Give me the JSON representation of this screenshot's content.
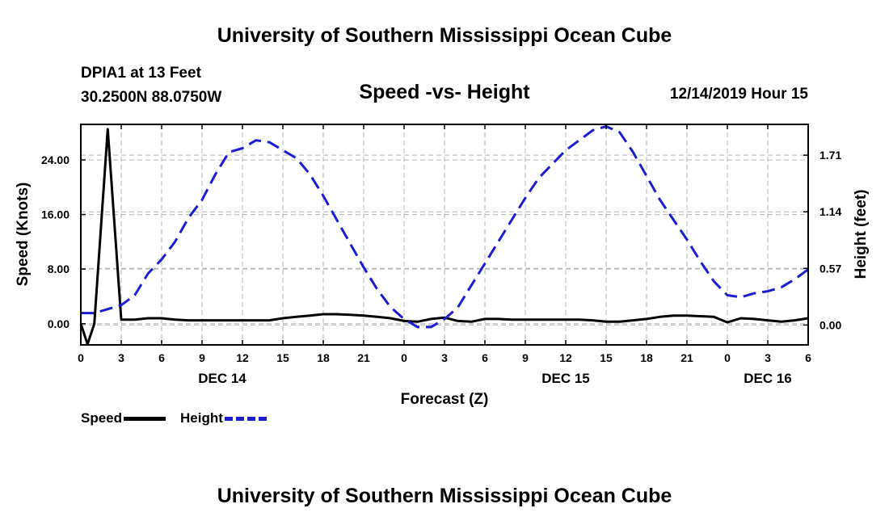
{
  "header": {
    "title": "University of Southern Mississippi Ocean Cube",
    "station_line1": "DPIA1 at 13 Feet",
    "station_line2": "30.2500N 88.0750W",
    "chart_subtitle": "Speed -vs- Height",
    "datetime": "12/14/2019 Hour 15"
  },
  "footer": {
    "title": "University of Southern Mississippi Ocean Cube"
  },
  "legend": {
    "speed_label": "Speed",
    "height_label": "Height"
  },
  "colors": {
    "speed": "#000000",
    "height": "#1c1cd0",
    "grid": "#b4b4b4"
  },
  "chart_data": {
    "type": "line",
    "title": "Speed -vs- Height",
    "xlabel": "Forecast (Z)",
    "ylabel_left": "Speed (Knots)",
    "ylabel_right": "Height (feet)",
    "x_unit": "forecast hours from 12/14/2019 00Z",
    "xlim": [
      0,
      54
    ],
    "x_ticks": [
      0,
      3,
      6,
      9,
      12,
      15,
      18,
      21,
      24,
      27,
      30,
      33,
      36,
      39,
      42,
      45,
      48,
      51,
      54
    ],
    "x_tick_labels": [
      "0",
      "3",
      "6",
      "9",
      "12",
      "15",
      "18",
      "21",
      "0",
      "3",
      "6",
      "9",
      "12",
      "15",
      "18",
      "21",
      "0",
      "3",
      "6"
    ],
    "day_labels": [
      {
        "label": "DEC 14",
        "x": 10.5
      },
      {
        "label": "DEC 15",
        "x": 36
      },
      {
        "label": "DEC 16",
        "x": 51
      }
    ],
    "ylim_left": [
      -3.1,
      29.2
    ],
    "y_ticks_left": [
      0,
      8,
      16,
      24
    ],
    "y_tick_labels_left": [
      "0.00",
      "8.00",
      "16.00",
      "24.00"
    ],
    "ylim_right": [
      -0.2,
      2.02
    ],
    "y_ticks_right": [
      0,
      0.57,
      1.14,
      1.71
    ],
    "y_tick_labels_right": [
      "0.00",
      "0.57",
      "1.14",
      "1.71"
    ],
    "grid": true,
    "series": [
      {
        "name": "Speed",
        "axis": "left",
        "style": "solid",
        "x": [
          0,
          0.5,
          1,
          2,
          3,
          4,
          5,
          6,
          7,
          8,
          9,
          10,
          11,
          12,
          13,
          14,
          15,
          16,
          17,
          18,
          19,
          20,
          21,
          22,
          23,
          24,
          25,
          26,
          27,
          28,
          29,
          30,
          31,
          32,
          33,
          34,
          35,
          36,
          37,
          38,
          39,
          40,
          41,
          42,
          43,
          44,
          45,
          46,
          47,
          48,
          49,
          50,
          51,
          52,
          53,
          54
        ],
        "values": [
          0,
          -3,
          0,
          28.5,
          0.6,
          0.6,
          0.8,
          0.8,
          0.6,
          0.5,
          0.5,
          0.5,
          0.5,
          0.5,
          0.5,
          0.5,
          0.8,
          1.0,
          1.2,
          1.4,
          1.4,
          1.3,
          1.2,
          1.0,
          0.8,
          0.4,
          0.3,
          0.7,
          0.9,
          0.4,
          0.3,
          0.7,
          0.7,
          0.6,
          0.6,
          0.6,
          0.6,
          0.6,
          0.6,
          0.5,
          0.3,
          0.3,
          0.5,
          0.7,
          1.0,
          1.2,
          1.2,
          1.1,
          1.0,
          0.2,
          0.8,
          0.7,
          0.5,
          0.3,
          0.5,
          0.8
        ]
      },
      {
        "name": "Height",
        "axis": "right",
        "style": "dashed",
        "x": [
          0,
          1,
          2,
          3,
          4,
          5,
          6,
          7,
          8,
          9,
          10,
          11,
          12,
          13,
          14,
          15,
          16,
          17,
          18,
          19,
          20,
          21,
          22,
          23,
          24,
          25,
          26,
          27,
          28,
          29,
          30,
          31,
          32,
          33,
          34,
          35,
          36,
          37,
          38,
          39,
          40,
          41,
          42,
          43,
          44,
          45,
          46,
          47,
          48,
          49,
          50,
          51,
          52,
          53,
          54
        ],
        "values": [
          0.12,
          0.12,
          0.16,
          0.2,
          0.3,
          0.52,
          0.66,
          0.84,
          1.08,
          1.26,
          1.52,
          1.74,
          1.78,
          1.86,
          1.84,
          1.76,
          1.68,
          1.52,
          1.3,
          1.06,
          0.82,
          0.58,
          0.36,
          0.18,
          0.06,
          -0.02,
          -0.02,
          0.06,
          0.18,
          0.4,
          0.62,
          0.84,
          1.06,
          1.28,
          1.48,
          1.62,
          1.76,
          1.86,
          1.96,
          2.0,
          1.94,
          1.74,
          1.5,
          1.26,
          1.06,
          0.86,
          0.64,
          0.44,
          0.3,
          0.28,
          0.32,
          0.34,
          0.38,
          0.46,
          0.56
        ]
      }
    ]
  }
}
